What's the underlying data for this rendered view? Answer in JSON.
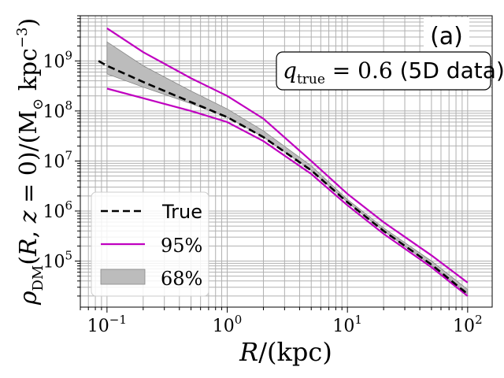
{
  "panel_label": "(a)",
  "annotation": {
    "prefix_symbol": "q",
    "prefix_subscript": "true",
    "equals_value": " = 0.6 ",
    "suffix": "(5D data)"
  },
  "colors": {
    "true_line": "#000000",
    "ci95": "#c000c0",
    "ci68_fill": "#bcbcbc",
    "ci68_edge": "#888888",
    "grid": "#b0b0b0"
  },
  "chart_data": {
    "type": "line",
    "title": "",
    "xlabel": "R/(kpc)",
    "ylabel": "ρ_DM(R, z = 0)/(M_⊙ kpc^−3)",
    "xscale": "log",
    "yscale": "log",
    "xlim": [
      0.06,
      160
    ],
    "ylim": [
      12000,
      8000000000
    ],
    "grid": true,
    "grid_minor": true,
    "x_ticks": [
      {
        "base": "10",
        "exp": "−1",
        "value": 0.1
      },
      {
        "base": "10",
        "exp": "0",
        "value": 1
      },
      {
        "base": "10",
        "exp": "1",
        "value": 10
      },
      {
        "base": "10",
        "exp": "2",
        "value": 100
      }
    ],
    "y_ticks": [
      {
        "base": "10",
        "exp": "5",
        "value": 100000
      },
      {
        "base": "10",
        "exp": "6",
        "value": 1000000
      },
      {
        "base": "10",
        "exp": "7",
        "value": 10000000
      },
      {
        "base": "10",
        "exp": "8",
        "value": 100000000
      },
      {
        "base": "10",
        "exp": "9",
        "value": 1000000000
      }
    ],
    "legend_position": "lower-left",
    "series": [
      {
        "name": "True",
        "style": "dashed",
        "x": [
          0.085,
          0.1,
          0.2,
          0.5,
          1,
          2,
          5,
          10,
          20,
          50,
          100
        ],
        "y": [
          1000000000,
          800000000,
          380000000,
          150000000,
          75000000,
          30000000,
          6500000,
          1500000,
          400000,
          85000,
          22000
        ]
      },
      {
        "name": "95%",
        "style": "solid",
        "lower": {
          "x": [
            0.1,
            0.2,
            0.5,
            1,
            2,
            5,
            10,
            20,
            50,
            100
          ],
          "y": [
            280000000,
            180000000,
            100000000,
            60000000,
            25000000,
            5500000,
            1300000,
            350000,
            75000,
            20000
          ]
        },
        "upper": {
          "x": [
            0.1,
            0.2,
            0.5,
            1,
            2,
            5,
            10,
            20,
            50,
            100
          ],
          "y": [
            4500000000,
            1500000000,
            450000000,
            200000000,
            70000000,
            10000000,
            2200000,
            600000,
            130000,
            37000
          ]
        }
      },
      {
        "name": "68%",
        "style": "band",
        "x": [
          0.1,
          0.2,
          0.5,
          1,
          2,
          5,
          10,
          20,
          50,
          100
        ],
        "lower": [
          550000000,
          300000000,
          140000000,
          75000000,
          30000000,
          6500000,
          1500000,
          400000,
          82000,
          22000
        ],
        "upper": [
          2400000000,
          800000000,
          250000000,
          110000000,
          40000000,
          8000000,
          1700000,
          460000,
          100000,
          27000
        ]
      }
    ]
  }
}
